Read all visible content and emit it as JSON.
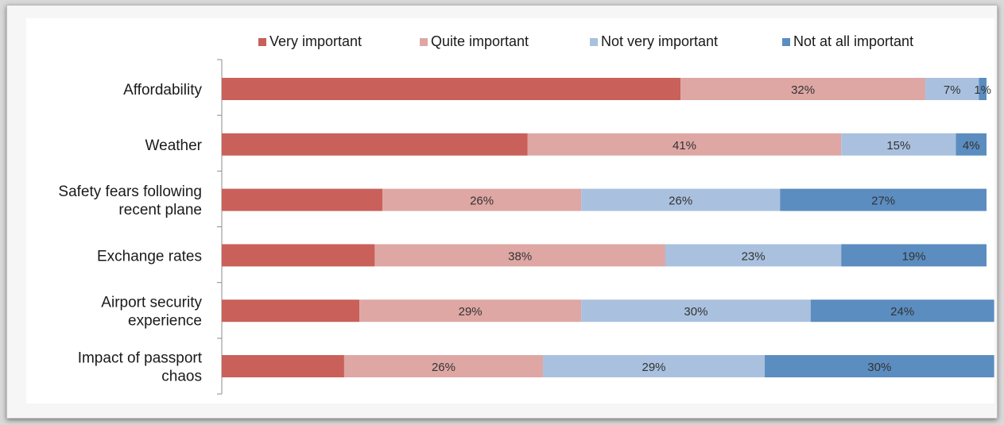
{
  "chart_data": {
    "type": "bar",
    "orientation": "horizontal",
    "stacked": true,
    "legend_position": "top",
    "xlim": [
      0,
      100
    ],
    "categories": [
      [
        "Affordability"
      ],
      [
        "Weather"
      ],
      [
        "Safety fears following",
        "recent plane"
      ],
      [
        "Exchange rates"
      ],
      [
        "Airport security",
        "experience"
      ],
      [
        "Impact of passport",
        "chaos"
      ]
    ],
    "series": [
      {
        "name": "Very important",
        "color": "#c9605a",
        "values": [
          60,
          40,
          21,
          20,
          18,
          16
        ],
        "labels": [
          "",
          "",
          "",
          "",
          "",
          ""
        ]
      },
      {
        "name": "Quite important",
        "color": "#dea7a4",
        "values": [
          32,
          41,
          26,
          38,
          29,
          26
        ],
        "labels": [
          "32%",
          "41%",
          "26%",
          "38%",
          "29%",
          "26%"
        ]
      },
      {
        "name": "Not very important",
        "color": "#a9c1de",
        "values": [
          7,
          15,
          26,
          23,
          30,
          29
        ],
        "labels": [
          "7%",
          "15%",
          "26%",
          "23%",
          "30%",
          "29%"
        ]
      },
      {
        "name": "Not at all important",
        "color": "#5b8dc0",
        "values": [
          1,
          4,
          27,
          19,
          24,
          30
        ],
        "labels": [
          "1%",
          "4%",
          "27%",
          "19%",
          "24%",
          "30%"
        ]
      }
    ]
  }
}
